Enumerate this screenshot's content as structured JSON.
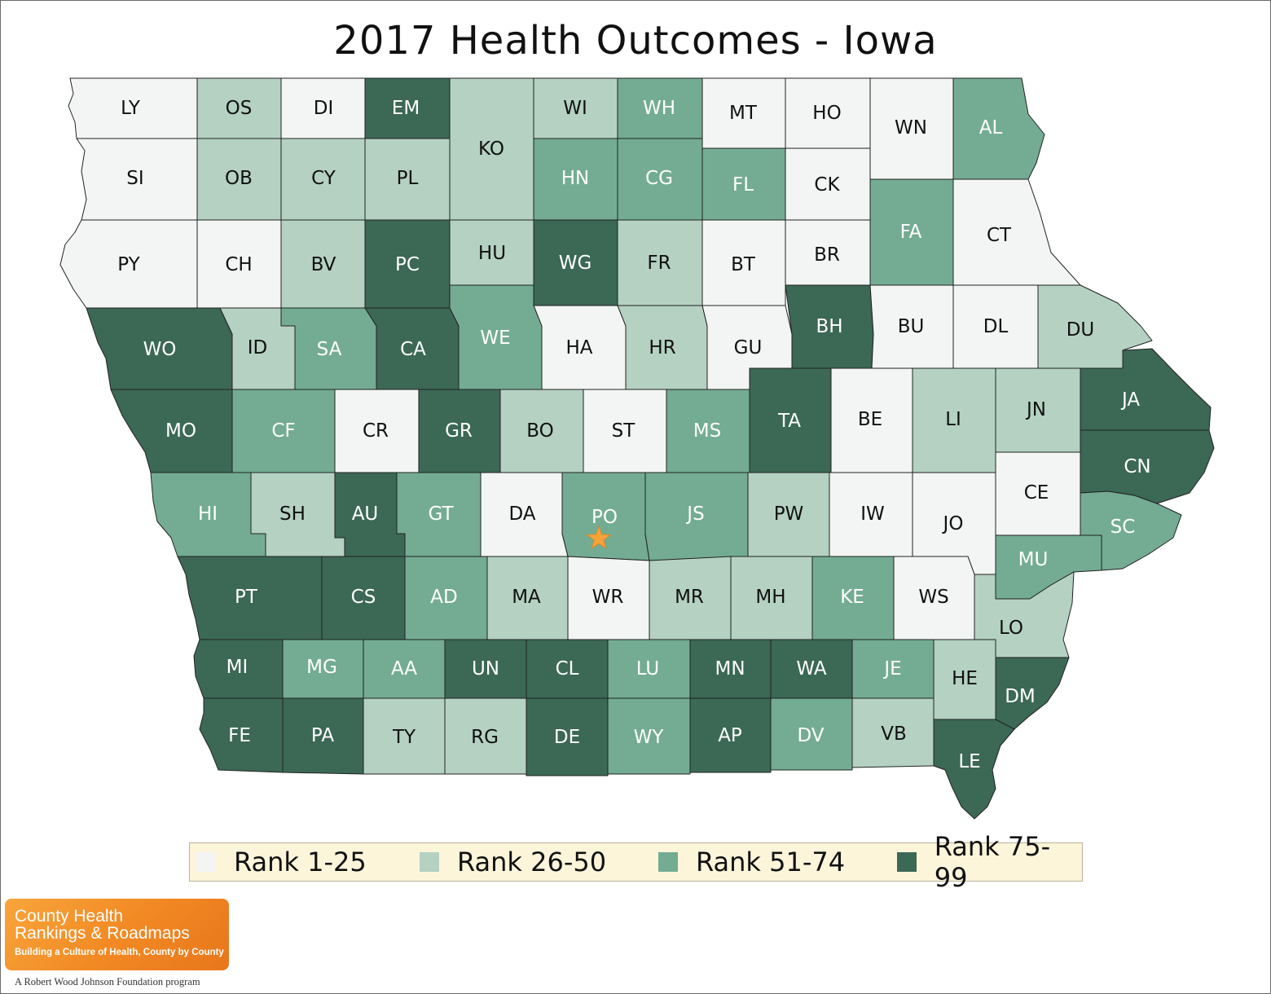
{
  "title": "2017 Health Outcomes - Iowa",
  "colors": {
    "rank_1_25": "#f2f5f3",
    "rank_26_50": "#b4d1c2",
    "rank_51_74": "#73ac92",
    "rank_75_99": "#3c6856",
    "border": "#222222",
    "marker": "#f6a43a"
  },
  "legend": [
    {
      "label": "Rank 1-25",
      "rank_group": 1
    },
    {
      "label": "Rank 26-50",
      "rank_group": 2
    },
    {
      "label": "Rank 51-74",
      "rank_group": 3
    },
    {
      "label": "Rank 75-99",
      "rank_group": 4
    }
  ],
  "counties": [
    {
      "abbr": "LY",
      "rank_group": 1
    },
    {
      "abbr": "OS",
      "rank_group": 2
    },
    {
      "abbr": "DI",
      "rank_group": 1
    },
    {
      "abbr": "EM",
      "rank_group": 4
    },
    {
      "abbr": "KO",
      "rank_group": 2
    },
    {
      "abbr": "WI",
      "rank_group": 2
    },
    {
      "abbr": "WH",
      "rank_group": 3
    },
    {
      "abbr": "MT",
      "rank_group": 1
    },
    {
      "abbr": "HO",
      "rank_group": 1
    },
    {
      "abbr": "WN",
      "rank_group": 1
    },
    {
      "abbr": "AL",
      "rank_group": 3
    },
    {
      "abbr": "SI",
      "rank_group": 1
    },
    {
      "abbr": "OB",
      "rank_group": 2
    },
    {
      "abbr": "CY",
      "rank_group": 2
    },
    {
      "abbr": "PL",
      "rank_group": 2
    },
    {
      "abbr": "HN",
      "rank_group": 3
    },
    {
      "abbr": "CG",
      "rank_group": 3
    },
    {
      "abbr": "FL",
      "rank_group": 3
    },
    {
      "abbr": "CK",
      "rank_group": 1
    },
    {
      "abbr": "FA",
      "rank_group": 3
    },
    {
      "abbr": "CT",
      "rank_group": 1
    },
    {
      "abbr": "PY",
      "rank_group": 1
    },
    {
      "abbr": "CH",
      "rank_group": 1
    },
    {
      "abbr": "BV",
      "rank_group": 2
    },
    {
      "abbr": "PC",
      "rank_group": 4
    },
    {
      "abbr": "HU",
      "rank_group": 2
    },
    {
      "abbr": "WG",
      "rank_group": 4
    },
    {
      "abbr": "FR",
      "rank_group": 2
    },
    {
      "abbr": "BT",
      "rank_group": 1
    },
    {
      "abbr": "BR",
      "rank_group": 1
    },
    {
      "abbr": "WO",
      "rank_group": 4
    },
    {
      "abbr": "ID",
      "rank_group": 2
    },
    {
      "abbr": "SA",
      "rank_group": 3
    },
    {
      "abbr": "CA",
      "rank_group": 4
    },
    {
      "abbr": "WE",
      "rank_group": 3
    },
    {
      "abbr": "HA",
      "rank_group": 1
    },
    {
      "abbr": "HR",
      "rank_group": 2
    },
    {
      "abbr": "GU",
      "rank_group": 1
    },
    {
      "abbr": "BH",
      "rank_group": 4
    },
    {
      "abbr": "BU",
      "rank_group": 1
    },
    {
      "abbr": "DL",
      "rank_group": 1
    },
    {
      "abbr": "DU",
      "rank_group": 2
    },
    {
      "abbr": "MO",
      "rank_group": 4
    },
    {
      "abbr": "CF",
      "rank_group": 3
    },
    {
      "abbr": "CR",
      "rank_group": 1
    },
    {
      "abbr": "GR",
      "rank_group": 4
    },
    {
      "abbr": "BO",
      "rank_group": 2
    },
    {
      "abbr": "ST",
      "rank_group": 1
    },
    {
      "abbr": "MS",
      "rank_group": 3
    },
    {
      "abbr": "TA",
      "rank_group": 4
    },
    {
      "abbr": "BE",
      "rank_group": 1
    },
    {
      "abbr": "LI",
      "rank_group": 2
    },
    {
      "abbr": "JN",
      "rank_group": 2
    },
    {
      "abbr": "JA",
      "rank_group": 4
    },
    {
      "abbr": "CN",
      "rank_group": 4
    },
    {
      "abbr": "HI",
      "rank_group": 3
    },
    {
      "abbr": "SH",
      "rank_group": 2
    },
    {
      "abbr": "AU",
      "rank_group": 4
    },
    {
      "abbr": "GT",
      "rank_group": 3
    },
    {
      "abbr": "DA",
      "rank_group": 1
    },
    {
      "abbr": "PO",
      "rank_group": 3
    },
    {
      "abbr": "JS",
      "rank_group": 3
    },
    {
      "abbr": "PW",
      "rank_group": 2
    },
    {
      "abbr": "IW",
      "rank_group": 1
    },
    {
      "abbr": "JO",
      "rank_group": 1
    },
    {
      "abbr": "CE",
      "rank_group": 1
    },
    {
      "abbr": "SC",
      "rank_group": 3
    },
    {
      "abbr": "PT",
      "rank_group": 4
    },
    {
      "abbr": "CS",
      "rank_group": 4
    },
    {
      "abbr": "AD",
      "rank_group": 3
    },
    {
      "abbr": "MA",
      "rank_group": 2
    },
    {
      "abbr": "WR",
      "rank_group": 1
    },
    {
      "abbr": "MR",
      "rank_group": 2
    },
    {
      "abbr": "MH",
      "rank_group": 2
    },
    {
      "abbr": "KE",
      "rank_group": 3
    },
    {
      "abbr": "WS",
      "rank_group": 1
    },
    {
      "abbr": "MU",
      "rank_group": 3
    },
    {
      "abbr": "LO",
      "rank_group": 2
    },
    {
      "abbr": "MI",
      "rank_group": 4
    },
    {
      "abbr": "MG",
      "rank_group": 3
    },
    {
      "abbr": "AA",
      "rank_group": 3
    },
    {
      "abbr": "UN",
      "rank_group": 4
    },
    {
      "abbr": "CL",
      "rank_group": 4
    },
    {
      "abbr": "LU",
      "rank_group": 3
    },
    {
      "abbr": "MN",
      "rank_group": 4
    },
    {
      "abbr": "WA",
      "rank_group": 4
    },
    {
      "abbr": "JE",
      "rank_group": 3
    },
    {
      "abbr": "HE",
      "rank_group": 2
    },
    {
      "abbr": "DM",
      "rank_group": 4
    },
    {
      "abbr": "FE",
      "rank_group": 4
    },
    {
      "abbr": "PA",
      "rank_group": 4
    },
    {
      "abbr": "TY",
      "rank_group": 2
    },
    {
      "abbr": "RG",
      "rank_group": 2
    },
    {
      "abbr": "DE",
      "rank_group": 4
    },
    {
      "abbr": "WY",
      "rank_group": 3
    },
    {
      "abbr": "AP",
      "rank_group": 4
    },
    {
      "abbr": "DV",
      "rank_group": 3
    },
    {
      "abbr": "VB",
      "rank_group": 2
    },
    {
      "abbr": "LE",
      "rank_group": 4
    }
  ],
  "marker": {
    "county": "PO",
    "icon": "star-icon"
  },
  "logo": {
    "line1": "County Health",
    "line2": "Rankings & Roadmaps",
    "tagline": "Building a Culture of Health, County by County",
    "foundation": "A Robert Wood Johnson Foundation program"
  }
}
